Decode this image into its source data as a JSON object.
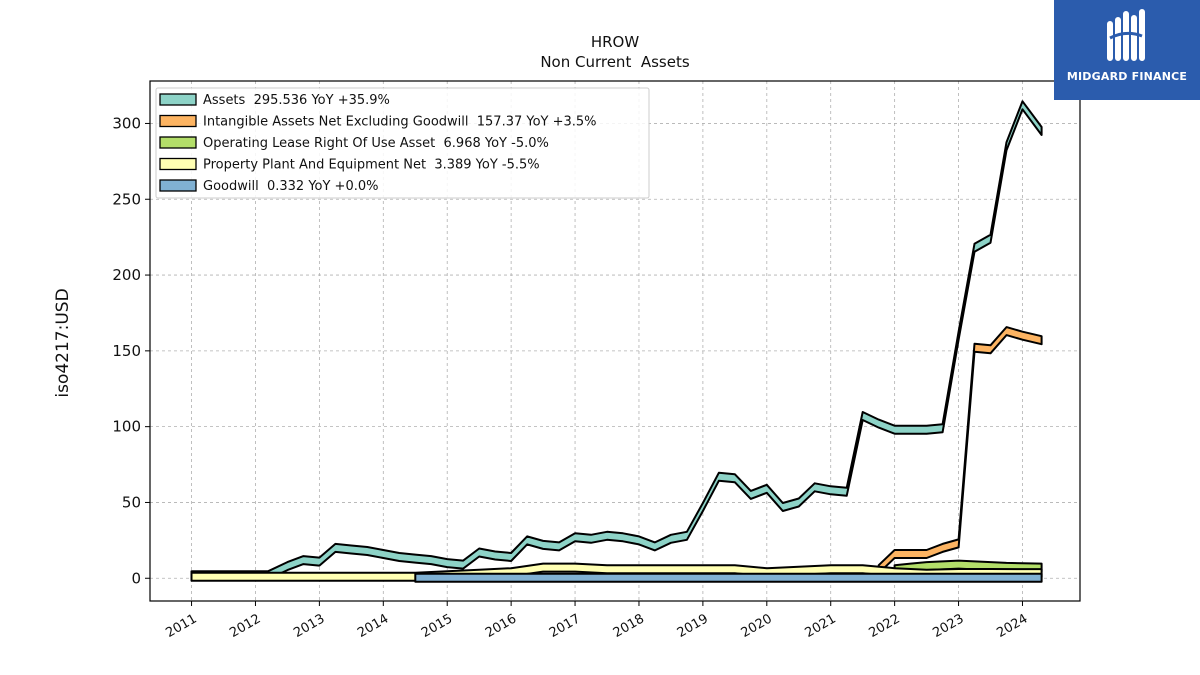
{
  "logo": {
    "text": "MIDGARD FINANCE",
    "color": "#2b5cad"
  },
  "chart_data": {
    "type": "area",
    "title": "HROW",
    "subtitle": "Non Current  Assets",
    "xlabel": "",
    "ylabel": "iso4217:USD",
    "ylim": [
      -15,
      328
    ],
    "xlim": [
      2010.35,
      2024.9
    ],
    "x_ticks": [
      "2011",
      "2012",
      "2013",
      "2014",
      "2015",
      "2016",
      "2017",
      "2018",
      "2019",
      "2020",
      "2021",
      "2022",
      "2023",
      "2024"
    ],
    "y_ticks": [
      "0",
      "50",
      "100",
      "150",
      "200",
      "250",
      "300"
    ],
    "grid": true,
    "legend_position": "top-left",
    "series": [
      {
        "name": "Assets  295.536 YoY +35.9%",
        "color": "#8dd3c7",
        "x": [
          2011.0,
          2012.2,
          2012.5,
          2012.75,
          2013.0,
          2013.25,
          2013.5,
          2013.75,
          2014.0,
          2014.25,
          2014.5,
          2014.75,
          2015.0,
          2015.25,
          2015.5,
          2015.75,
          2016.0,
          2016.25,
          2016.5,
          2016.75,
          2017.0,
          2017.25,
          2017.5,
          2017.75,
          2018.0,
          2018.25,
          2018.5,
          2018.75,
          2019.0,
          2019.25,
          2019.5,
          2019.75,
          2020.0,
          2020.25,
          2020.5,
          2020.75,
          2021.0,
          2021.25,
          2021.5,
          2021.75,
          2022.0,
          2022.25,
          2022.5,
          2022.75,
          2023.0,
          2023.25,
          2023.5,
          2023.75,
          2024.0,
          2024.3
        ],
        "values": [
          2,
          2,
          8,
          12,
          11,
          20,
          19,
          18,
          16,
          14,
          13,
          12,
          10,
          9,
          17,
          15,
          14,
          25,
          22,
          21,
          27,
          26,
          28,
          27,
          25,
          21,
          26,
          28,
          47,
          67,
          66,
          55,
          59,
          47,
          50,
          60,
          58,
          57,
          107,
          102,
          98,
          98,
          98,
          99,
          160,
          218,
          224,
          285,
          312,
          295
        ]
      },
      {
        "name": "Intangible Assets Net Excluding Goodwill  157.37 YoY +3.5%",
        "color": "#fdb462",
        "x": [
          2021.75,
          2022.0,
          2022.25,
          2022.5,
          2022.75,
          2023.0,
          2023.25,
          2023.5,
          2023.75,
          2024.0,
          2024.3
        ],
        "values": [
          6,
          16,
          16,
          16,
          20,
          23,
          152,
          151,
          163,
          160,
          157
        ]
      },
      {
        "name": "Operating Lease Right Of Use Asset  6.968 YoY -5.0%",
        "color": "#b3de69",
        "x": [
          2022.0,
          2022.25,
          2022.5,
          2022.75,
          2023.0,
          2023.25,
          2023.5,
          2023.75,
          2024.0,
          2024.3
        ],
        "values": [
          6,
          7,
          8,
          8.5,
          9,
          8.5,
          8,
          7.5,
          7.3,
          7
        ]
      },
      {
        "name": "Property Plant And Equipment Net  3.389 YoY -5.5%",
        "color": "#ffffb3",
        "x": [
          2011.0,
          2012.0,
          2013.0,
          2014.0,
          2014.5,
          2015.0,
          2015.5,
          2016.0,
          2016.5,
          2017.0,
          2017.5,
          2018.0,
          2018.5,
          2019.0,
          2019.5,
          2020.0,
          2020.5,
          2021.0,
          2021.5,
          2022.0,
          2022.5,
          2023.0,
          2023.5,
          2024.0,
          2024.3
        ],
        "values": [
          1,
          1,
          1,
          1,
          1,
          2,
          3,
          4,
          7,
          7,
          6,
          6,
          6,
          6,
          6,
          4,
          5,
          6,
          6,
          4,
          3,
          3.5,
          3.5,
          3.4,
          3.4
        ]
      },
      {
        "name": "Goodwill  0.332 YoY +0.0%",
        "color": "#80b1d3",
        "x": [
          2014.5,
          2024.3
        ],
        "values": [
          0.332,
          0.332
        ]
      }
    ]
  }
}
